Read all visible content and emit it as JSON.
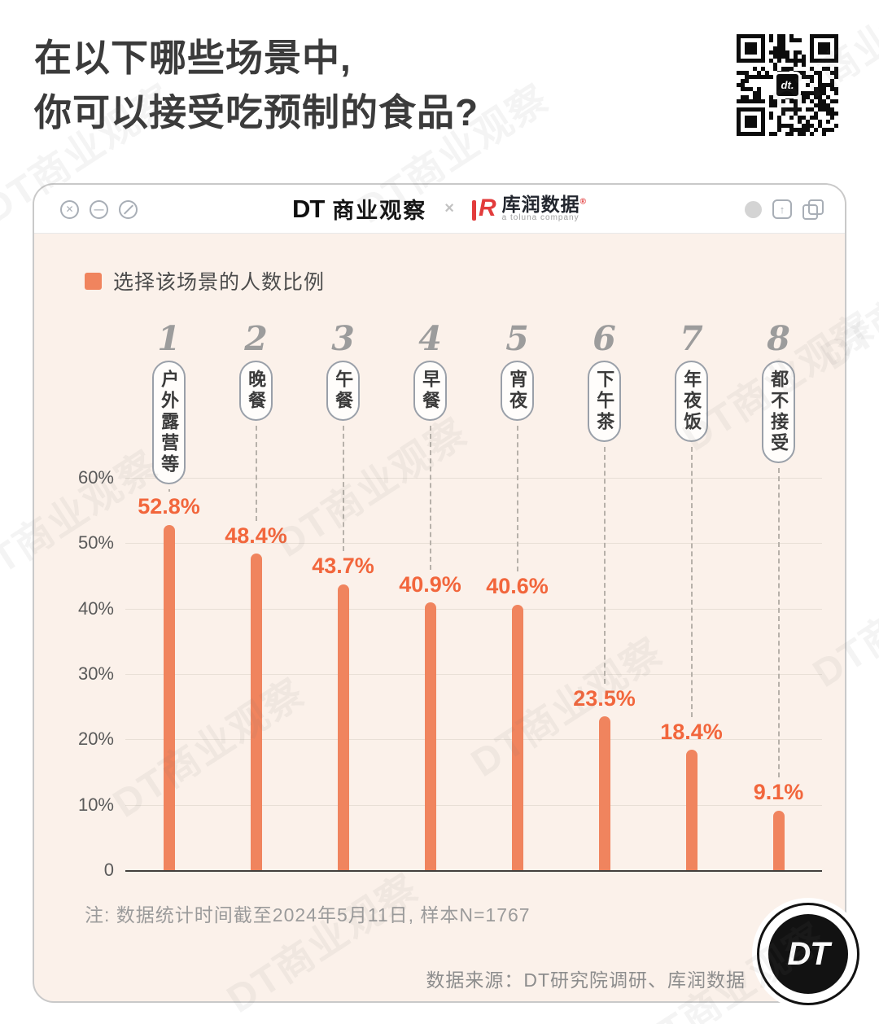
{
  "header": {
    "title_line1": "在以下哪些场景中,",
    "title_line2": "你可以接受吃预制的食品?"
  },
  "qr": {
    "center_label": "dt."
  },
  "window": {
    "controls": [
      "close-icon",
      "minimize-icon",
      "block-icon"
    ],
    "right_icons": [
      "circle-icon",
      "share-icon",
      "copy-icon"
    ],
    "brand_left": {
      "dt": "DT",
      "name": "商业观察"
    },
    "separator": "×",
    "brand_right": {
      "logo": "R",
      "name": "库润数据",
      "reg": "®",
      "subtitle": "a toluna company"
    }
  },
  "chart_data": {
    "type": "bar",
    "legend_label": "选择该场景的人数比例",
    "ranks": [
      "1",
      "2",
      "3",
      "4",
      "5",
      "6",
      "7",
      "8"
    ],
    "categories": [
      "户外露营等",
      "晚餐",
      "午餐",
      "早餐",
      "宵夜",
      "下午茶",
      "年夜饭",
      "都不接受"
    ],
    "values": [
      52.8,
      48.4,
      43.7,
      40.9,
      40.6,
      23.5,
      18.4,
      9.1
    ],
    "value_labels": [
      "52.8%",
      "48.4%",
      "43.7%",
      "40.9%",
      "40.6%",
      "23.5%",
      "18.4%",
      "9.1%"
    ],
    "ylabel_ticks": [
      "60%",
      "50%",
      "40%",
      "30%",
      "20%",
      "10%",
      "0"
    ],
    "ylim": [
      0,
      60
    ],
    "grid": true,
    "legend_position": "top-left",
    "bar_color": "#F0845E",
    "label_color": "#F2663C"
  },
  "footnote": "注: 数据统计时间截至2024年5月11日, 样本N=1767",
  "source": "数据来源：DT研究院调研、库润数据",
  "stamp": {
    "text": "DT"
  },
  "watermark": {
    "text": "DT商业观察"
  }
}
